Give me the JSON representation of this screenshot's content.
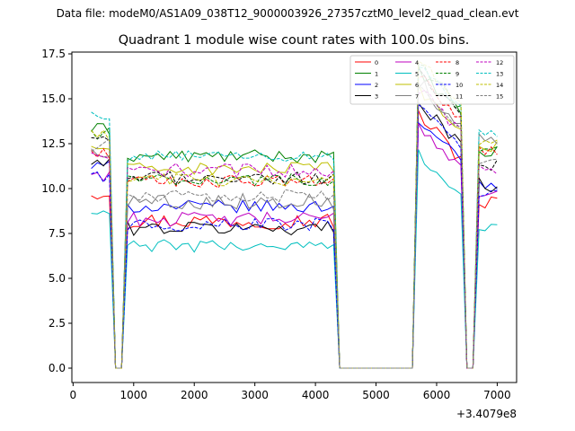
{
  "chart_data": {
    "type": "line",
    "suptitle": "Data file: modeM0/AS1A09_038T12_9000003926_27357cztM0_level2_quad_clean.evt",
    "title": "Quadrant 1 module wise count rates with 100.0s bins.",
    "xlabel": "",
    "ylabel": "",
    "x_offset_label": "+3.4079e8",
    "xlim": [
      -20,
      7320
    ],
    "ylim": [
      -0.8,
      17.6
    ],
    "xticks": [
      0,
      1000,
      2000,
      3000,
      4000,
      5000,
      6000,
      7000
    ],
    "xtick_labels": [
      "0",
      "1000",
      "2000",
      "3000",
      "4000",
      "5000",
      "6000",
      "7000"
    ],
    "yticks": [
      0.0,
      2.5,
      5.0,
      7.5,
      10.0,
      12.5,
      15.0,
      17.5
    ],
    "ytick_labels": [
      "0.0",
      "2.5",
      "5.0",
      "7.5",
      "10.0",
      "12.5",
      "15.0",
      "17.5"
    ],
    "legend_position": "top-right",
    "x_segments": [
      {
        "start": 300,
        "end": 600
      },
      {
        "start": 700,
        "end": 800
      },
      {
        "start": 900,
        "end": 4300
      },
      {
        "start": 4400,
        "end": 5600
      },
      {
        "start": 5700,
        "end": 6400
      },
      {
        "start": 6500,
        "end": 6600
      },
      {
        "start": 6700,
        "end": 7000
      }
    ],
    "series": [
      {
        "name": "0",
        "color": "#ff0000",
        "dashed": false,
        "levels": [
          9.8,
          0.0,
          8.2,
          0.0,
          12.8,
          0.0,
          9.2
        ],
        "jitter": 0.45
      },
      {
        "name": "1",
        "color": "#008000",
        "dashed": false,
        "levels": [
          13.3,
          0.0,
          11.8,
          0.0,
          15.2,
          0.0,
          12.0
        ],
        "jitter": 0.35
      },
      {
        "name": "2",
        "color": "#0000ff",
        "dashed": false,
        "levels": [
          11.2,
          0.0,
          9.0,
          0.0,
          12.6,
          0.0,
          10.2
        ],
        "jitter": 0.35
      },
      {
        "name": "3",
        "color": "#000000",
        "dashed": false,
        "levels": [
          11.4,
          0.0,
          7.8,
          0.0,
          13.6,
          0.0,
          10.2
        ],
        "jitter": 0.4
      },
      {
        "name": "4",
        "color": "#bf00bf",
        "dashed": false,
        "levels": [
          10.8,
          0.0,
          8.3,
          0.0,
          12.3,
          0.0,
          9.8
        ],
        "jitter": 0.4
      },
      {
        "name": "5",
        "color": "#00bfbf",
        "dashed": false,
        "levels": [
          8.6,
          0.0,
          6.8,
          0.0,
          10.7,
          0.0,
          7.8
        ],
        "jitter": 0.35
      },
      {
        "name": "6",
        "color": "#bfbf00",
        "dashed": false,
        "levels": [
          12.3,
          0.0,
          11.1,
          0.0,
          14.3,
          0.0,
          12.3
        ],
        "jitter": 0.35
      },
      {
        "name": "7",
        "color": "#808080",
        "dashed": false,
        "levels": [
          12.1,
          0.0,
          9.3,
          0.0,
          14.6,
          0.0,
          12.8
        ],
        "jitter": 0.45
      },
      {
        "name": "8",
        "color": "#ff0000",
        "dashed": true,
        "levels": [
          12.0,
          0.0,
          10.4,
          0.0,
          15.0,
          0.0,
          12.0
        ],
        "jitter": 0.35
      },
      {
        "name": "9",
        "color": "#008000",
        "dashed": true,
        "levels": [
          13.1,
          0.0,
          10.5,
          0.0,
          15.6,
          0.0,
          12.3
        ],
        "jitter": 0.35
      },
      {
        "name": "10",
        "color": "#0000ff",
        "dashed": true,
        "levels": [
          10.6,
          0.0,
          8.0,
          0.0,
          13.2,
          0.0,
          9.7
        ],
        "jitter": 0.4
      },
      {
        "name": "11",
        "color": "#000000",
        "dashed": true,
        "levels": [
          12.6,
          0.0,
          10.6,
          0.0,
          15.1,
          0.0,
          11.3
        ],
        "jitter": 0.35
      },
      {
        "name": "12",
        "color": "#bf00bf",
        "dashed": true,
        "levels": [
          11.7,
          0.0,
          11.0,
          0.0,
          14.3,
          0.0,
          11.1
        ],
        "jitter": 0.4
      },
      {
        "name": "13",
        "color": "#00bfbf",
        "dashed": true,
        "levels": [
          14.0,
          0.0,
          11.8,
          0.0,
          15.6,
          0.0,
          13.0
        ],
        "jitter": 0.3
      },
      {
        "name": "14",
        "color": "#bfbf00",
        "dashed": true,
        "levels": [
          12.9,
          0.0,
          10.5,
          0.0,
          15.8,
          0.0,
          12.7
        ],
        "jitter": 0.35
      },
      {
        "name": "15",
        "color": "#808080",
        "dashed": true,
        "levels": [
          12.4,
          0.0,
          9.6,
          0.0,
          14.4,
          0.0,
          11.5
        ],
        "jitter": 0.35
      }
    ]
  }
}
